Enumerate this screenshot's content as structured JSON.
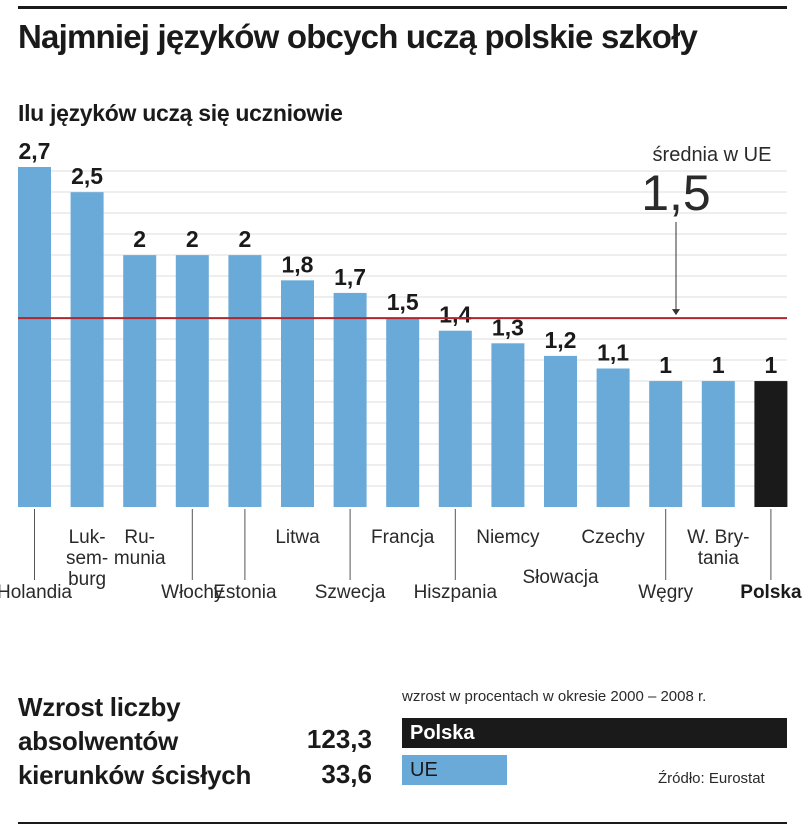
{
  "title": "Najmniej języków obcych uczą polskie szkoły",
  "chart_data": {
    "type": "bar",
    "title": "Ilu języków uczą się uczniowie",
    "categories": [
      "Holandia",
      "Luksemburg",
      "Rumunia",
      "Włochy",
      "Estonia",
      "Litwa",
      "Szwecja",
      "Francja",
      "Hiszpania",
      "Niemcy",
      "Słowacja",
      "Czechy",
      "Węgry",
      "W. Brytania",
      "Polska"
    ],
    "category_labels": [
      [
        "Holandia"
      ],
      [
        "Luk-",
        "sem-",
        "burg"
      ],
      [
        "Ru-",
        "munia"
      ],
      [
        "Włochy"
      ],
      [
        "Estonia"
      ],
      [
        "Litwa"
      ],
      [
        "Szwecja"
      ],
      [
        "Francja"
      ],
      [
        "Hiszpania"
      ],
      [
        "Niemcy"
      ],
      [
        "Słowacja"
      ],
      [
        "Czechy"
      ],
      [
        "Węgry"
      ],
      [
        "W. Bry-",
        "tania"
      ],
      [
        "Polska"
      ]
    ],
    "values": [
      2.7,
      2.5,
      2,
      2,
      2,
      1.8,
      1.7,
      1.5,
      1.4,
      1.3,
      1.2,
      1.1,
      1,
      1,
      1
    ],
    "value_labels": [
      "2,7",
      "2,5",
      "2",
      "2",
      "2",
      "1,8",
      "1,7",
      "1,5",
      "1,4",
      "1,3",
      "1,2",
      "1,1",
      "1",
      "1",
      "1"
    ],
    "highlight": "Polska",
    "ylim": [
      0,
      2.7
    ],
    "grid": true,
    "reference_line": {
      "label": "średnia w UE",
      "value": 1.5,
      "value_label": "1,5"
    },
    "colors": {
      "bar": "#6aaad9",
      "highlight": "#1a1a1a",
      "reference": "#b0262e",
      "grid": "#dddddd"
    }
  },
  "growth": {
    "heading_lines": [
      "Wzrost liczby",
      "absolwentów",
      "kierunków ścisłych"
    ],
    "caption": "wzrost w procentach w okresie 2000 – 2008 r.",
    "rows": [
      {
        "label": "Polska",
        "value": 123.3,
        "value_label": "123,3",
        "color": "#1a1a1a",
        "text_color": "#ffffff",
        "bold": true
      },
      {
        "label": "UE",
        "value": 33.6,
        "value_label": "33,6",
        "color": "#6aaad9",
        "text_color": "#1a1a1a",
        "bold": false
      }
    ]
  },
  "source": "Źródło: Eurostat"
}
